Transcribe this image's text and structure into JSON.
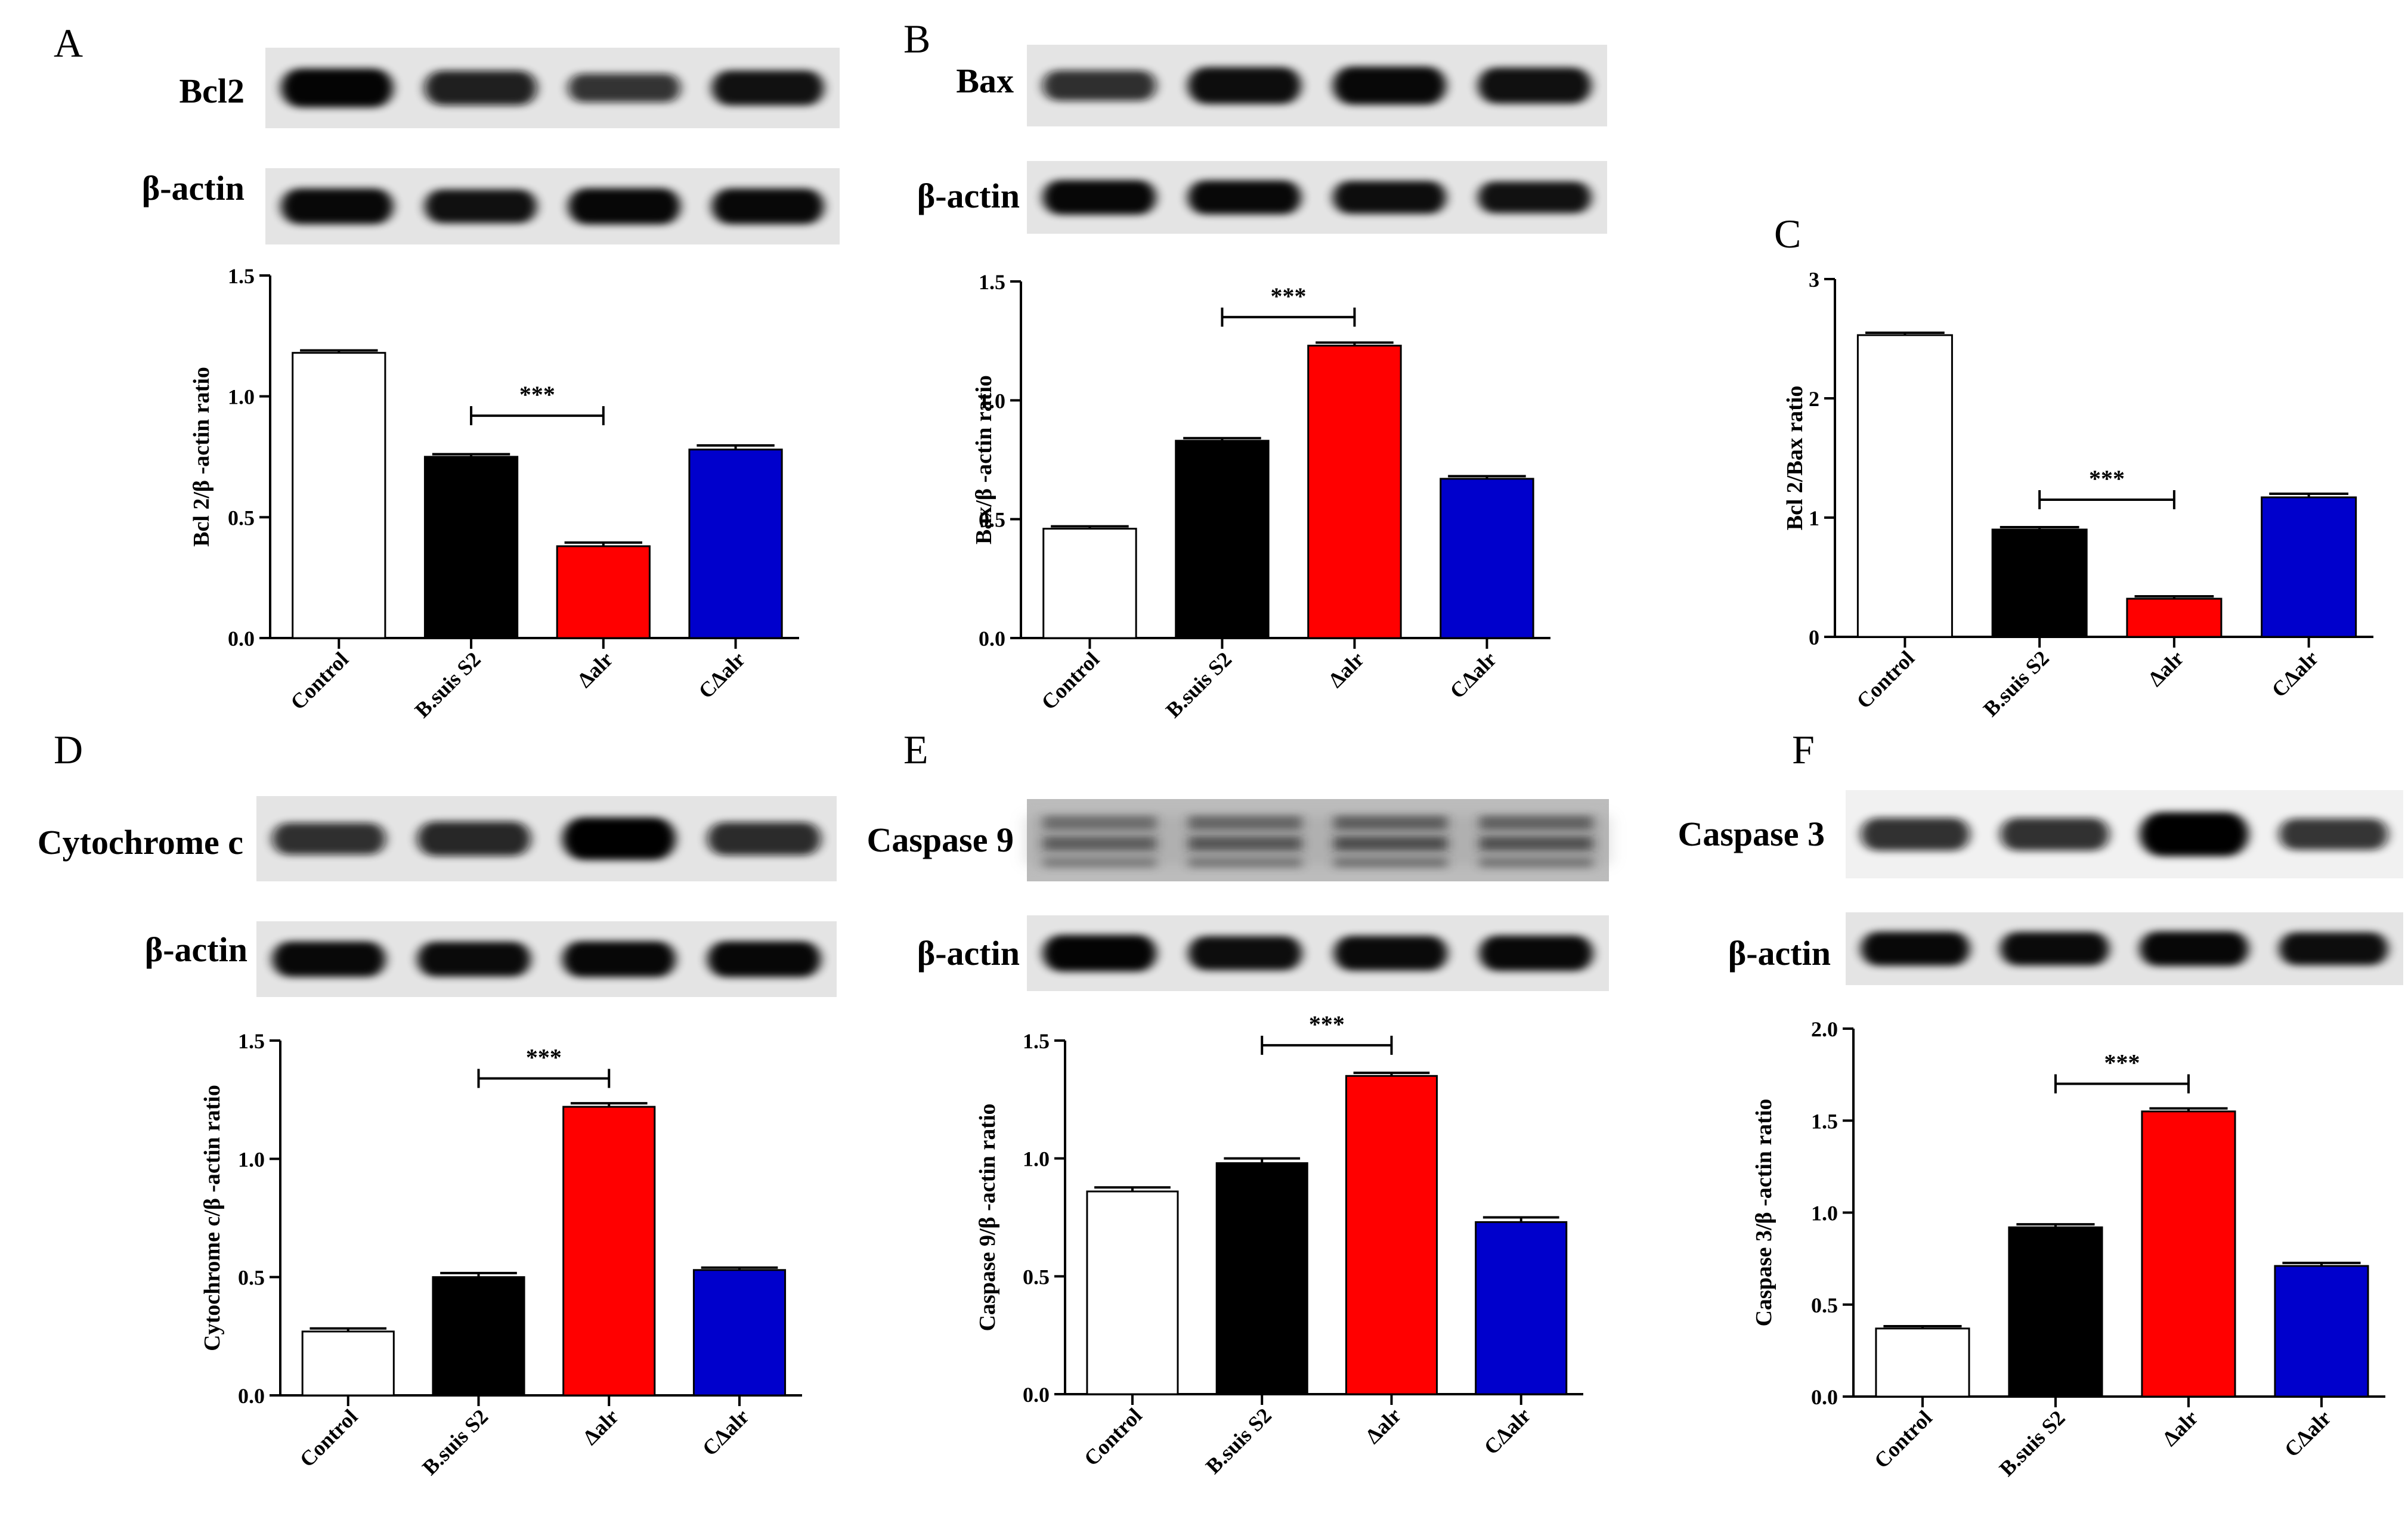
{
  "panels": [
    {
      "letter": "A",
      "blots": [
        {
          "label": "Bcl2",
          "style": "clean",
          "intensity": [
            0.95,
            0.78,
            0.55,
            0.8
          ]
        },
        {
          "label": "β-actin",
          "style": "clean",
          "intensity": [
            0.9,
            0.82,
            0.92,
            0.9
          ]
        }
      ],
      "chart_data": {
        "type": "bar",
        "categories": [
          "Control",
          "B.suis S2",
          "Δalr",
          "CΔalr"
        ],
        "values": [
          1.18,
          0.75,
          0.38,
          0.78
        ],
        "errors": [
          0.005,
          0.006,
          0.01,
          0.012
        ],
        "ylabel": "Bcl 2/β -actin ratio",
        "ylim": [
          0,
          1.5
        ],
        "yticks": [
          0.0,
          0.5,
          1.0,
          1.5
        ],
        "ytick_labels": [
          "0.0",
          "0.5",
          "1.0",
          "1.5"
        ],
        "significance": {
          "from": 1,
          "to": 2,
          "label": "***",
          "y": 0.92
        }
      }
    },
    {
      "letter": "B",
      "blots": [
        {
          "label": "Bax",
          "style": "clean",
          "intensity": [
            0.6,
            0.85,
            0.9,
            0.82
          ]
        },
        {
          "label": "β-actin",
          "style": "clean",
          "intensity": [
            0.92,
            0.9,
            0.85,
            0.8
          ]
        }
      ],
      "chart_data": {
        "type": "bar",
        "categories": [
          "Control",
          "B.suis S2",
          "Δalr",
          "CΔalr"
        ],
        "values": [
          0.46,
          0.83,
          1.23,
          0.67
        ],
        "errors": [
          0.005,
          0.006,
          0.008,
          0.006
        ],
        "ylabel": "Bax/β -actin ratio",
        "ylim": [
          0,
          1.5
        ],
        "yticks": [
          0.0,
          0.5,
          1.0,
          1.5
        ],
        "ytick_labels": [
          "0.0",
          "0.5",
          "1.0",
          "1.5"
        ],
        "significance": {
          "from": 1,
          "to": 2,
          "label": "***",
          "y": 1.35
        }
      }
    },
    {
      "letter": "C",
      "blots": [],
      "chart_data": {
        "type": "bar",
        "categories": [
          "Control",
          "B.suis S2",
          "Δalr",
          "CΔalr"
        ],
        "values": [
          2.53,
          0.9,
          0.32,
          1.17
        ],
        "errors": [
          0.01,
          0.01,
          0.01,
          0.02
        ],
        "ylabel": "Bcl 2/Bax ratio",
        "ylim": [
          0,
          3
        ],
        "yticks": [
          0,
          1,
          2,
          3
        ],
        "ytick_labels": [
          "0",
          "1",
          "2",
          "3"
        ],
        "significance": {
          "from": 1,
          "to": 2,
          "label": "***",
          "y": 1.15
        }
      }
    },
    {
      "letter": "D",
      "blots": [
        {
          "label": "Cytochrome c",
          "style": "clean",
          "intensity": [
            0.6,
            0.7,
            1.0,
            0.65
          ]
        },
        {
          "label": "β-actin",
          "style": "clean",
          "intensity": [
            0.9,
            0.88,
            0.92,
            0.92
          ]
        }
      ],
      "chart_data": {
        "type": "bar",
        "categories": [
          "Control",
          "B.suis S2",
          "Δalr",
          "CΔalr"
        ],
        "values": [
          0.27,
          0.5,
          1.22,
          0.53
        ],
        "errors": [
          0.008,
          0.012,
          0.01,
          0.005
        ],
        "ylabel": "Cytochrome c/β -actin ratio",
        "ylim": [
          0,
          1.5
        ],
        "yticks": [
          0.0,
          0.5,
          1.0,
          1.5
        ],
        "ytick_labels": [
          "0.0",
          "0.5",
          "1.0",
          "1.5"
        ],
        "significance": {
          "from": 1,
          "to": 2,
          "label": "***",
          "y": 1.34
        }
      }
    },
    {
      "letter": "E",
      "blots": [
        {
          "label": "Caspase 9",
          "style": "noisy",
          "intensity": [
            0.55,
            0.65,
            0.75,
            0.7
          ]
        },
        {
          "label": "β-actin",
          "style": "clean",
          "intensity": [
            0.95,
            0.85,
            0.88,
            0.9
          ]
        }
      ],
      "chart_data": {
        "type": "bar",
        "categories": [
          "Control",
          "B.suis S2",
          "Δalr",
          "CΔalr"
        ],
        "values": [
          0.86,
          0.98,
          1.35,
          0.73
        ],
        "errors": [
          0.012,
          0.015,
          0.008,
          0.015
        ],
        "ylabel": "Caspase 9/β -actin ratio",
        "ylim": [
          0,
          1.5
        ],
        "yticks": [
          0.0,
          0.5,
          1.0,
          1.5
        ],
        "ytick_labels": [
          "0.0",
          "0.5",
          "1.0",
          "1.5"
        ],
        "significance": {
          "from": 1,
          "to": 2,
          "label": "***",
          "y": 1.48
        }
      }
    },
    {
      "letter": "F",
      "blots": [
        {
          "label": "Caspase 3",
          "style": "light",
          "intensity": [
            0.6,
            0.6,
            1.0,
            0.55
          ]
        },
        {
          "label": "β-actin",
          "style": "clean",
          "intensity": [
            0.9,
            0.88,
            0.92,
            0.85
          ]
        }
      ],
      "chart_data": {
        "type": "bar",
        "categories": [
          "Control",
          "B.suis S2",
          "Δalr",
          "CΔalr"
        ],
        "values": [
          0.37,
          0.92,
          1.55,
          0.71
        ],
        "errors": [
          0.006,
          0.01,
          0.01,
          0.01
        ],
        "ylabel": "Caspase 3/β -actin ratio",
        "ylim": [
          0,
          2.0
        ],
        "yticks": [
          0.0,
          0.5,
          1.0,
          1.5,
          2.0
        ],
        "ytick_labels": [
          "0.0",
          "0.5",
          "1.0",
          "1.5",
          "2.0"
        ],
        "significance": {
          "from": 1,
          "to": 2,
          "label": "***",
          "y": 1.7
        }
      }
    }
  ],
  "bar_colors": [
    "#ffffff",
    "#000000",
    "#ff0000",
    "#0000cc"
  ]
}
